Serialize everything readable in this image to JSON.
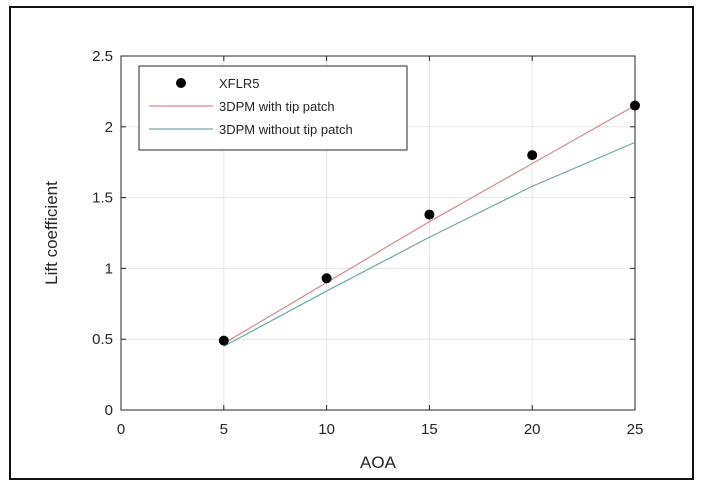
{
  "chart_data": {
    "type": "line",
    "title": "",
    "xlabel": "AOA",
    "ylabel": "Lift coefficient",
    "xlim": [
      0,
      25
    ],
    "ylim": [
      0,
      2.5
    ],
    "xticks": [
      0,
      5,
      10,
      15,
      20,
      25
    ],
    "yticks": [
      0,
      0.5,
      1,
      1.5,
      2,
      2.5
    ],
    "xtick_labels": [
      "0",
      "5",
      "10",
      "15",
      "20",
      "25"
    ],
    "ytick_labels": [
      "0",
      "0.5",
      "1",
      "1.5",
      "2",
      "2.5"
    ],
    "grid": true,
    "legend_position": "top-left",
    "series": [
      {
        "name": "XFLR5",
        "kind": "markers",
        "color": "#000000",
        "x": [
          5,
          10,
          15,
          20,
          25
        ],
        "y": [
          0.49,
          0.93,
          1.38,
          1.8,
          2.15
        ]
      },
      {
        "name": "3DPM with tip patch",
        "kind": "line",
        "color": "#d98a8a",
        "x": [
          5,
          10,
          15,
          20,
          25
        ],
        "y": [
          0.47,
          0.9,
          1.33,
          1.74,
          2.15
        ]
      },
      {
        "name": "3DPM without tip patch",
        "kind": "line",
        "color": "#6aaaa6",
        "x": [
          5,
          10,
          15,
          20,
          25
        ],
        "y": [
          0.45,
          0.84,
          1.22,
          1.58,
          1.89
        ]
      }
    ]
  }
}
